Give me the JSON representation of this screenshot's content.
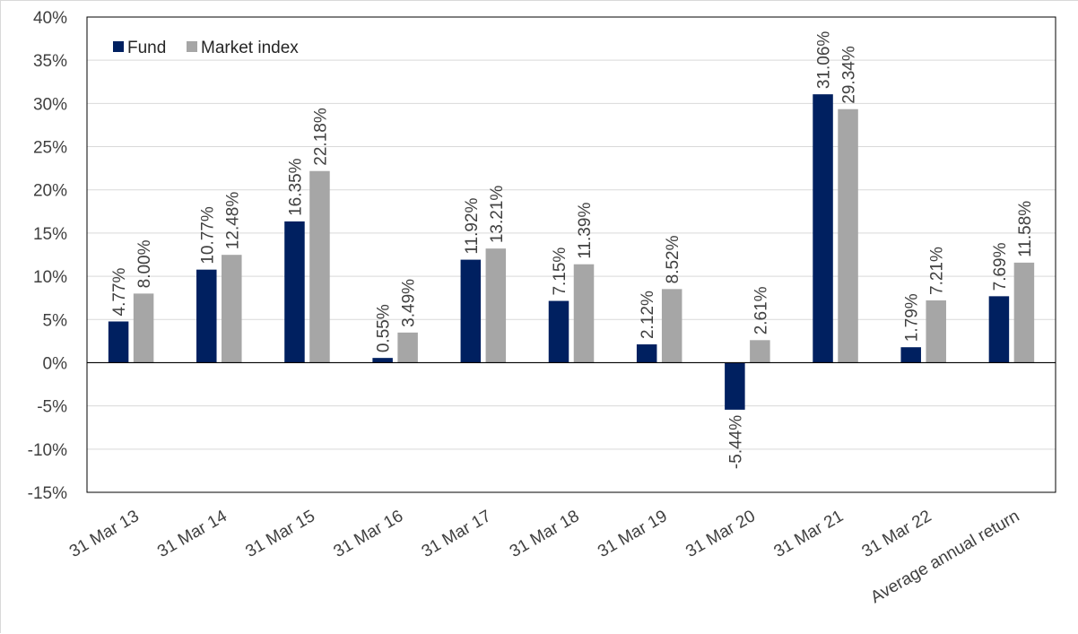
{
  "chart_data": {
    "type": "bar",
    "categories": [
      "31 Mar 13",
      "31 Mar 14",
      "31 Mar 15",
      "31 Mar 16",
      "31 Mar 17",
      "31 Mar 18",
      "31 Mar 19",
      "31 Mar 20",
      "31 Mar 21",
      "31 Mar 22",
      "Average annual return"
    ],
    "series": [
      {
        "name": "Fund",
        "color": "#002060",
        "values": [
          4.77,
          10.77,
          16.35,
          0.55,
          11.92,
          7.15,
          2.12,
          -5.44,
          31.06,
          1.79,
          7.69
        ],
        "labels": [
          "4.77%",
          "10.77%",
          "16.35%",
          "0.55%",
          "11.92%",
          "7.15%",
          "2.12%",
          "-5.44%",
          "31.06%",
          "1.79%",
          "7.69%"
        ]
      },
      {
        "name": "Market index",
        "color": "#a6a6a6",
        "values": [
          8.0,
          12.48,
          22.18,
          3.49,
          13.21,
          11.39,
          8.52,
          2.61,
          29.34,
          7.21,
          11.58
        ],
        "labels": [
          "8.00%",
          "12.48%",
          "22.18%",
          "3.49%",
          "13.21%",
          "11.39%",
          "8.52%",
          "2.61%",
          "29.34%",
          "7.21%",
          "11.58%"
        ]
      }
    ],
    "y_ticks": [
      40,
      35,
      30,
      25,
      20,
      15,
      10,
      5,
      0,
      -5,
      -10,
      -15
    ],
    "y_tick_labels": [
      "40%",
      "35%",
      "30%",
      "25%",
      "20%",
      "15%",
      "10%",
      "5%",
      "0%",
      "-5%",
      "-10%",
      "-15%"
    ],
    "ylim": [
      -15,
      40
    ],
    "grid": true,
    "legend": "top-left",
    "title": "",
    "xlabel": "",
    "ylabel": ""
  }
}
